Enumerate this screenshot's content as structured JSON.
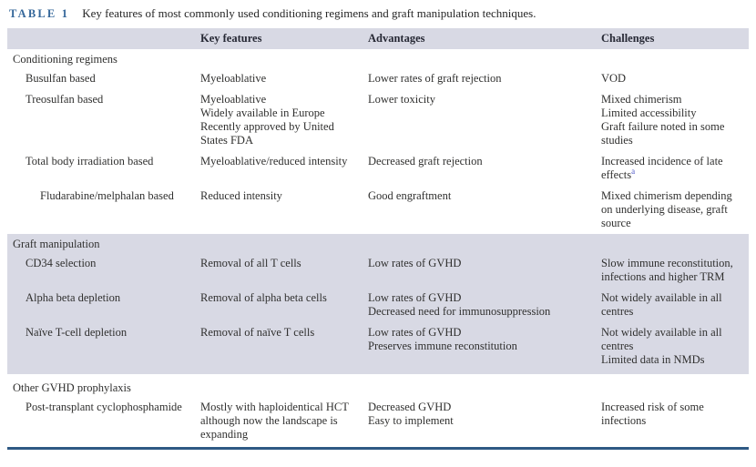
{
  "colors": {
    "table_label": "#35679a",
    "header_band": "#d8d9e4",
    "section_band": "#d8d9e4",
    "bottom_rule": "#2e5984",
    "footnote_marker": "#4f58c6",
    "body_text": "#30302f"
  },
  "table": {
    "label": "TABLE 1",
    "caption": "Key features of most commonly used conditioning regimens and graft manipulation techniques.",
    "columns": [
      "Key features",
      "Advantages",
      "Challenges"
    ],
    "sections": [
      {
        "title": "Conditioning regimens",
        "rows": [
          {
            "name": "Busulfan based",
            "key_features": [
              "Myeloablative"
            ],
            "advantages": [
              "Lower rates of graft rejection"
            ],
            "challenges": [
              "VOD"
            ]
          },
          {
            "name": "Treosulfan based",
            "key_features": [
              "Myeloablative",
              "Widely available in Europe",
              "Recently approved by United States FDA"
            ],
            "advantages": [
              "Lower toxicity"
            ],
            "challenges": [
              "Mixed chimerism",
              "Limited accessibility",
              "Graft failure noted in some studies"
            ]
          },
          {
            "name": "Total body irradiation based",
            "key_features": [
              "Myeloablative/reduced intensity"
            ],
            "advantages": [
              "Decreased graft rejection"
            ],
            "challenges": [
              "Increased incidence of late effects"
            ],
            "challenges_sup": "a"
          },
          {
            "name": "Fludarabine/melphalan based",
            "key_features": [
              "Reduced intensity"
            ],
            "advantages": [
              "Good engraftment"
            ],
            "challenges": [
              "Mixed chimerism depending on underlying disease, graft source"
            ]
          }
        ]
      },
      {
        "title": "Graft manipulation",
        "rows": [
          {
            "name": "CD34 selection",
            "key_features": [
              "Removal of all T cells"
            ],
            "advantages": [
              "Low rates of GVHD"
            ],
            "challenges": [
              "Slow immune reconstitution, infections and higher TRM"
            ]
          },
          {
            "name": "Alpha beta depletion",
            "key_features": [
              "Removal of alpha beta cells"
            ],
            "advantages": [
              "Low rates of GVHD",
              "Decreased need for immunosuppression"
            ],
            "challenges": [
              "Not widely available in all centres"
            ]
          },
          {
            "name": "Naïve T-cell depletion",
            "key_features": [
              "Removal of naïve T cells"
            ],
            "advantages": [
              "Low rates of GVHD",
              "Preserves immune reconstitution"
            ],
            "challenges": [
              "Not widely available in all centres",
              "Limited data in NMDs"
            ]
          }
        ]
      },
      {
        "title": "Other GVHD prophylaxis",
        "rows": [
          {
            "name": "Post-transplant cyclophosphamide",
            "key_features": [
              "Mostly with haploidentical HCT although now the landscape is expanding"
            ],
            "advantages": [
              "Decreased GVHD",
              "Easy to implement"
            ],
            "challenges": [
              "Increased risk of some infections"
            ]
          }
        ]
      }
    ]
  }
}
